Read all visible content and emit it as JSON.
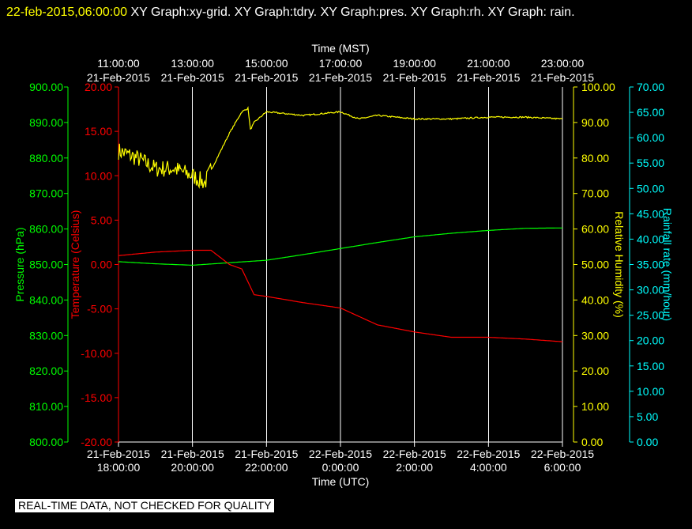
{
  "header": {
    "timestamp": "22-feb-2015,06:00:00",
    "graphs_text": "  XY Graph:xy-grid.  XY Graph:tdry.  XY Graph:pres.  XY Graph:rh.  XY Graph: rain."
  },
  "footer_note": "REAL-TIME DATA, NOT CHECKED FOR QUALITY",
  "colors": {
    "background": "#000000",
    "grid": "#ffffff",
    "temperature": "#ff0000",
    "pressure": "#00ff00",
    "humidity": "#ffff00",
    "rainfall": "#00ffff"
  },
  "chart_data": {
    "type": "line",
    "grid": true,
    "top_axis": {
      "title": "Time (MST)",
      "ticks": [
        {
          "time": "11:00:00",
          "date": "21-Feb-2015"
        },
        {
          "time": "13:00:00",
          "date": "21-Feb-2015"
        },
        {
          "time": "15:00:00",
          "date": "21-Feb-2015"
        },
        {
          "time": "17:00:00",
          "date": "21-Feb-2015"
        },
        {
          "time": "19:00:00",
          "date": "21-Feb-2015"
        },
        {
          "time": "21:00:00",
          "date": "21-Feb-2015"
        },
        {
          "time": "23:00:00",
          "date": "21-Feb-2015"
        }
      ]
    },
    "bottom_axis": {
      "title": "Time (UTC)",
      "range": [
        "2015-02-21 18:00:00",
        "2015-02-22 06:00:00"
      ],
      "ticks": [
        {
          "date": "21-Feb-2015",
          "time": "18:00:00"
        },
        {
          "date": "21-Feb-2015",
          "time": "20:00:00"
        },
        {
          "date": "21-Feb-2015",
          "time": "22:00:00"
        },
        {
          "date": "22-Feb-2015",
          "time": "0:00:00"
        },
        {
          "date": "22-Feb-2015",
          "time": "2:00:00"
        },
        {
          "date": "22-Feb-2015",
          "time": "4:00:00"
        },
        {
          "date": "22-Feb-2015",
          "time": "6:00:00"
        }
      ]
    },
    "axes": {
      "pressure": {
        "label": "Pressure (hPa)",
        "min": 800,
        "max": 900,
        "ticks": [
          "900.00",
          "890.00",
          "880.00",
          "870.00",
          "860.00",
          "850.00",
          "840.00",
          "830.00",
          "820.00",
          "810.00",
          "800.00"
        ]
      },
      "temperature": {
        "label": "Temperature (Celsius)",
        "min": -20,
        "max": 20,
        "ticks": [
          "20.00",
          "15.00",
          "10.00",
          "5.00",
          "0.00",
          "-5.00",
          "-10.00",
          "-15.00",
          "-20.00"
        ]
      },
      "humidity": {
        "label": "Relative Humidity (%)",
        "min": 0,
        "max": 100,
        "ticks": [
          "100.00",
          "90.00",
          "80.00",
          "70.00",
          "60.00",
          "50.00",
          "40.00",
          "30.00",
          "20.00",
          "10.00",
          "0.00"
        ]
      },
      "rainfall": {
        "label": "Rainfall rate (mm/hour)",
        "min": 0,
        "max": 70,
        "ticks": [
          "70.00",
          "65.00",
          "60.00",
          "55.00",
          "50.00",
          "45.00",
          "40.00",
          "35.00",
          "30.00",
          "25.00",
          "20.00",
          "15.00",
          "10.00",
          "5.00",
          "0.00"
        ]
      }
    },
    "series": [
      {
        "key": "humidity",
        "axis": "humidity",
        "noise": 2.5,
        "noise_until": "2015-02-21 20:30",
        "points": [
          [
            "2015-02-21 18:00",
            82
          ],
          [
            "2015-02-21 18:30",
            80
          ],
          [
            "2015-02-21 19:00",
            77
          ],
          [
            "2015-02-21 19:30",
            77
          ],
          [
            "2015-02-21 20:00",
            75
          ],
          [
            "2015-02-21 20:20",
            73
          ],
          [
            "2015-02-21 20:40",
            80
          ],
          [
            "2015-02-21 21:00",
            87
          ],
          [
            "2015-02-21 21:20",
            93
          ],
          [
            "2015-02-21 21:30",
            94
          ],
          [
            "2015-02-21 21:34",
            88
          ],
          [
            "2015-02-21 21:40",
            90
          ],
          [
            "2015-02-21 22:00",
            93
          ],
          [
            "2015-02-21 23:00",
            92
          ],
          [
            "2015-02-22 00:00",
            93
          ],
          [
            "2015-02-22 00:30",
            91
          ],
          [
            "2015-02-22 01:00",
            92
          ],
          [
            "2015-02-22 02:00",
            91
          ],
          [
            "2015-02-22 03:00",
            91
          ],
          [
            "2015-02-22 04:00",
            91.5
          ],
          [
            "2015-02-22 05:00",
            91.5
          ],
          [
            "2015-02-22 06:00",
            91
          ]
        ]
      },
      {
        "key": "pressure",
        "axis": "pressure",
        "noise": 0,
        "points": [
          [
            "2015-02-21 18:00",
            850.8
          ],
          [
            "2015-02-21 19:00",
            850.2
          ],
          [
            "2015-02-21 20:00",
            849.8
          ],
          [
            "2015-02-21 21:00",
            850.5
          ],
          [
            "2015-02-21 22:00",
            851.2
          ],
          [
            "2015-02-21 23:00",
            852.8
          ],
          [
            "2015-02-22 00:00",
            854.5
          ],
          [
            "2015-02-22 01:00",
            856.2
          ],
          [
            "2015-02-22 02:00",
            857.8
          ],
          [
            "2015-02-22 03:00",
            858.8
          ],
          [
            "2015-02-22 04:00",
            859.6
          ],
          [
            "2015-02-22 05:00",
            860.2
          ],
          [
            "2015-02-22 06:00",
            860.3
          ]
        ]
      },
      {
        "key": "temperature",
        "axis": "temperature",
        "noise": 0,
        "points": [
          [
            "2015-02-21 18:00",
            1.0
          ],
          [
            "2015-02-21 19:00",
            1.4
          ],
          [
            "2015-02-21 20:00",
            1.6
          ],
          [
            "2015-02-21 20:30",
            1.6
          ],
          [
            "2015-02-21 21:00",
            0
          ],
          [
            "2015-02-21 21:20",
            -0.5
          ],
          [
            "2015-02-21 21:40",
            -3.4
          ],
          [
            "2015-02-21 22:00",
            -3.6
          ],
          [
            "2015-02-21 23:00",
            -4.3
          ],
          [
            "2015-02-22 00:00",
            -4.9
          ],
          [
            "2015-02-22 01:00",
            -6.8
          ],
          [
            "2015-02-22 02:00",
            -7.6
          ],
          [
            "2015-02-22 03:00",
            -8.2
          ],
          [
            "2015-02-22 04:00",
            -8.2
          ],
          [
            "2015-02-22 05:00",
            -8.4
          ],
          [
            "2015-02-22 06:00",
            -8.7
          ]
        ]
      }
    ]
  }
}
